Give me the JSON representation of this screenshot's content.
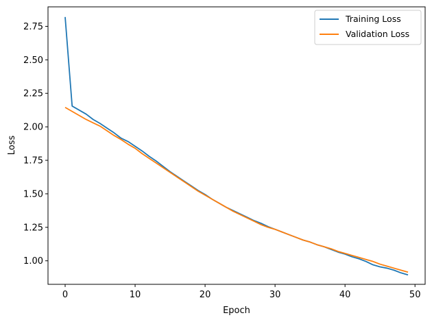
{
  "chart_data": {
    "type": "line",
    "xlabel": "Epoch",
    "ylabel": "Loss",
    "xlim": [
      -2.45,
      51.45
    ],
    "ylim": [
      0.8245,
      2.8955
    ],
    "xticks": [
      0,
      10,
      20,
      30,
      40,
      50
    ],
    "xtick_labels": [
      "0",
      "10",
      "20",
      "30",
      "40",
      "50"
    ],
    "yticks": [
      1.0,
      1.25,
      1.5,
      1.75,
      2.0,
      2.25,
      2.5,
      2.75
    ],
    "ytick_labels": [
      "1.00",
      "1.25",
      "1.50",
      "1.75",
      "2.00",
      "2.25",
      "2.50",
      "2.75"
    ],
    "grid": false,
    "legend_position": "upper-right",
    "x": [
      0,
      1,
      2,
      3,
      4,
      5,
      6,
      7,
      8,
      9,
      10,
      11,
      12,
      13,
      14,
      15,
      16,
      17,
      18,
      19,
      20,
      21,
      22,
      23,
      24,
      25,
      26,
      27,
      28,
      29,
      30,
      31,
      32,
      33,
      34,
      35,
      36,
      37,
      38,
      39,
      40,
      41,
      42,
      43,
      44,
      45,
      46,
      47,
      48,
      49
    ],
    "series": [
      {
        "name": "Training Loss",
        "color": "#1f77b4",
        "values": [
          2.82,
          2.155,
          2.125,
          2.095,
          2.055,
          2.025,
          1.99,
          1.955,
          1.915,
          1.89,
          1.855,
          1.82,
          1.78,
          1.745,
          1.705,
          1.665,
          1.63,
          1.595,
          1.56,
          1.525,
          1.495,
          1.46,
          1.43,
          1.4,
          1.375,
          1.35,
          1.325,
          1.3,
          1.28,
          1.255,
          1.235,
          1.215,
          1.195,
          1.175,
          1.155,
          1.14,
          1.12,
          1.105,
          1.085,
          1.065,
          1.05,
          1.03,
          1.015,
          0.995,
          0.97,
          0.955,
          0.945,
          0.93,
          0.91,
          0.895
        ]
      },
      {
        "name": "Validation Loss",
        "color": "#ff7f0e",
        "values": [
          2.145,
          2.115,
          2.085,
          2.055,
          2.03,
          2.005,
          1.97,
          1.935,
          1.905,
          1.87,
          1.84,
          1.8,
          1.765,
          1.73,
          1.695,
          1.66,
          1.625,
          1.59,
          1.555,
          1.52,
          1.49,
          1.46,
          1.43,
          1.4,
          1.37,
          1.345,
          1.32,
          1.295,
          1.27,
          1.25,
          1.235,
          1.215,
          1.195,
          1.175,
          1.155,
          1.14,
          1.12,
          1.105,
          1.09,
          1.07,
          1.055,
          1.04,
          1.025,
          1.01,
          0.995,
          0.975,
          0.96,
          0.945,
          0.93,
          0.915
        ]
      }
    ]
  }
}
